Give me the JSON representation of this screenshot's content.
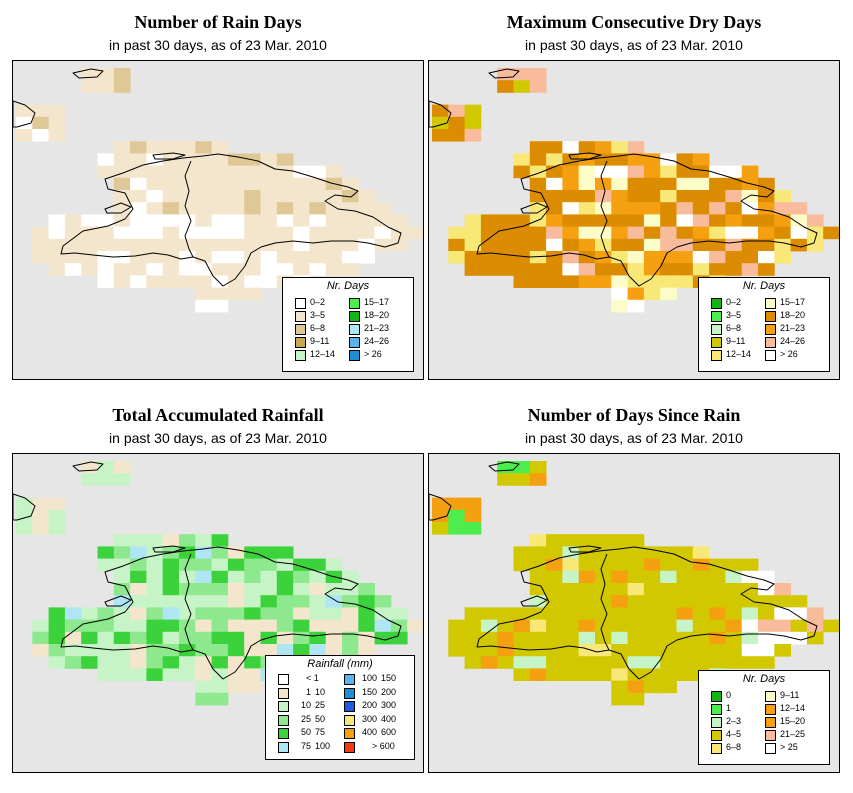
{
  "panels": [
    {
      "id": "rain-days",
      "title": "Number of Rain Days",
      "subtitle": "in past 30 days, as of  23 Mar. 2010",
      "legend": {
        "title": "Nr. Days",
        "items": [
          {
            "label": "0–2",
            "color": "#ffffff"
          },
          {
            "label": "3–5",
            "color": "#f3e6cc"
          },
          {
            "label": "6–8",
            "color": "#dfc896"
          },
          {
            "label": "9–11",
            "color": "#c8a850"
          },
          {
            "label": "12–14",
            "color": "#c6f4c6"
          },
          {
            "label": "15–17",
            "color": "#4ced4c"
          },
          {
            "label": "18–20",
            "color": "#14b414"
          },
          {
            "label": "21–23",
            "color": "#aee6f4"
          },
          {
            "label": "24–26",
            "color": "#5ab4ee"
          },
          {
            "label": "> 26",
            "color": "#1e8ed2"
          }
        ]
      }
    },
    {
      "id": "max-dry-days",
      "title": "Maximum Consecutive Dry Days",
      "subtitle": "in past 30 days, as of  23 Mar. 2010",
      "legend": {
        "title": "Nr. Days",
        "items": [
          {
            "label": "0–2",
            "color": "#14b414"
          },
          {
            "label": "3–5",
            "color": "#4ced4c"
          },
          {
            "label": "6–8",
            "color": "#c6f4c6"
          },
          {
            "label": "9–11",
            "color": "#d2c800"
          },
          {
            "label": "12–14",
            "color": "#f8e878"
          },
          {
            "label": "15–17",
            "color": "#fcfcc8"
          },
          {
            "label": "18–20",
            "color": "#dc8c00"
          },
          {
            "label": "21–23",
            "color": "#f4a010"
          },
          {
            "label": "24–26",
            "color": "#f8bc9c"
          },
          {
            "label": "> 26",
            "color": "#ffffff"
          }
        ]
      }
    },
    {
      "id": "total-rainfall",
      "title": "Total Accumulated Rainfall",
      "subtitle": "in past 30 days, as of  23 Mar. 2010",
      "legend": {
        "title": "Rainfall (mm)",
        "items": [
          {
            "lo": "",
            "hi": "< 1",
            "color": "#ffffff"
          },
          {
            "lo": "1",
            "hi": "10",
            "color": "#f3e6cc"
          },
          {
            "lo": "10",
            "hi": "25",
            "color": "#c6f4c6"
          },
          {
            "lo": "25",
            "hi": "50",
            "color": "#8ee88e"
          },
          {
            "lo": "50",
            "hi": "75",
            "color": "#3cd23c"
          },
          {
            "lo": "75",
            "hi": "100",
            "color": "#aee6f4"
          },
          {
            "lo": "100",
            "hi": "150",
            "color": "#5ab4ee"
          },
          {
            "lo": "150",
            "hi": "200",
            "color": "#1e8ed2"
          },
          {
            "lo": "200",
            "hi": "300",
            "color": "#1e5adc"
          },
          {
            "lo": "300",
            "hi": "400",
            "color": "#f8e878"
          },
          {
            "lo": "400",
            "hi": "600",
            "color": "#f4a010"
          },
          {
            "lo": "",
            "hi": "> 600",
            "color": "#f03c14"
          }
        ]
      }
    },
    {
      "id": "days-since-rain",
      "title": "Number of Days Since Rain",
      "subtitle": "in past 30 days, as of  23 Mar. 2010",
      "legend": {
        "title": "Nr. Days",
        "items": [
          {
            "label": "0",
            "color": "#14b414"
          },
          {
            "label": "1",
            "color": "#4ced4c"
          },
          {
            "label": "2–3",
            "color": "#c6f4c6"
          },
          {
            "label": "4–5",
            "color": "#d2c800"
          },
          {
            "label": "6–8",
            "color": "#f8e878"
          },
          {
            "label": "9–11",
            "color": "#fcfcc8"
          },
          {
            "label": "12–14",
            "color": "#f4a010"
          },
          {
            "label": "15–20",
            "color": "#f4a010"
          },
          {
            "label": "21–25",
            "color": "#f8bc9c"
          },
          {
            "label": "> 25",
            "color": "#ffffff"
          }
        ]
      }
    }
  ]
}
